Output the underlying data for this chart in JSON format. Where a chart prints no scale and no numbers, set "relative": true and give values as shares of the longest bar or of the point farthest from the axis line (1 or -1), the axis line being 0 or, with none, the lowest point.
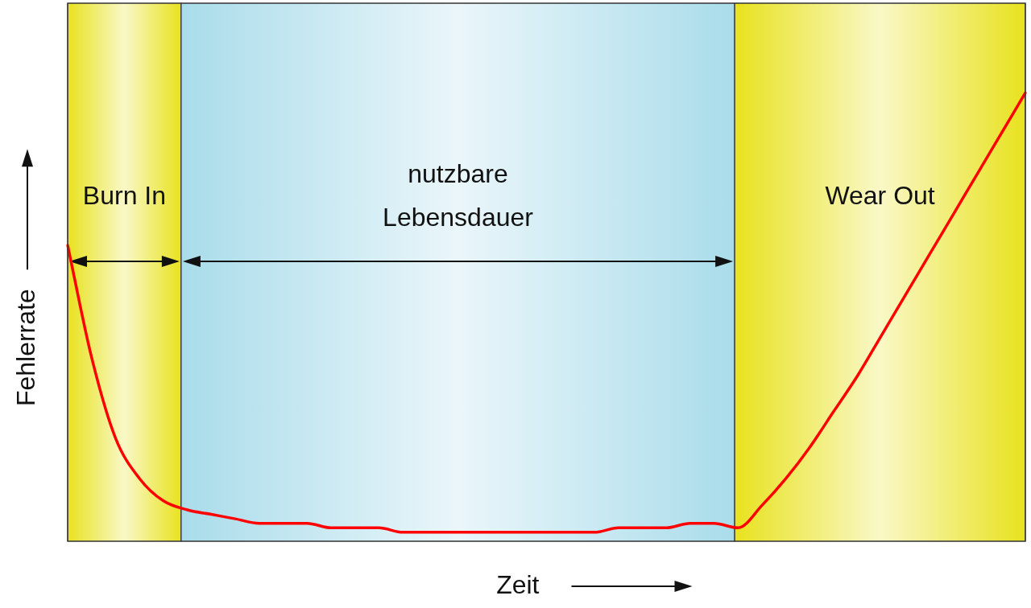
{
  "chart_data": {
    "type": "line",
    "xlabel": "Zeit",
    "ylabel": "Fehlerrate",
    "relative": true,
    "marker": "none",
    "legend": false,
    "categories": [
      null,
      null,
      null,
      null,
      null,
      null,
      null,
      null,
      null,
      null,
      null,
      null,
      null,
      null,
      null,
      null,
      null,
      null,
      null,
      null,
      null,
      null,
      null,
      null,
      null,
      null,
      null,
      null,
      null,
      null,
      null,
      null,
      null,
      null,
      null,
      null,
      null,
      null,
      null,
      null,
      null
    ],
    "series": [
      {
        "color": "#ff0000",
        "values": [
          0.66,
          0.41,
          0.23,
          0.14,
          0.09,
          0.07,
          0.06,
          0.05,
          0.04,
          0.04,
          0.04,
          0.03,
          0.03,
          0.03,
          0.02,
          0.02,
          0.02,
          0.02,
          0.02,
          0.02,
          0.02,
          0.02,
          0.02,
          0.03,
          0.03,
          0.03,
          0.04,
          0.04,
          0.03,
          0.08,
          0.14,
          0.21,
          0.29,
          0.37,
          0.46,
          0.55,
          0.64,
          0.73,
          0.82,
          0.91,
          1
        ]
      }
    ],
    "annotations": [
      "Burn In",
      "nutzbare Lebensdauer",
      "Wear Out"
    ]
  }
}
